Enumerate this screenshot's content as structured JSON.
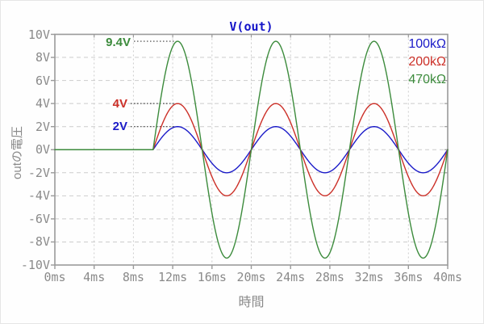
{
  "title": "V(out)",
  "title_color": "#1414c8",
  "axes": {
    "x": {
      "label": "時間",
      "tick_labels": [
        "0ms",
        "4ms",
        "8ms",
        "12ms",
        "16ms",
        "20ms",
        "24ms",
        "28ms",
        "32ms",
        "36ms",
        "40ms"
      ],
      "tick_values": [
        0,
        4,
        8,
        12,
        16,
        20,
        24,
        28,
        32,
        36,
        40
      ]
    },
    "y": {
      "label": "outの電圧",
      "tick_labels": [
        "10V",
        "8V",
        "6V",
        "4V",
        "2V",
        "0V",
        "-2V",
        "-4V",
        "-6V",
        "-8V",
        "-10V"
      ],
      "tick_values": [
        10,
        8,
        6,
        4,
        2,
        0,
        -2,
        -4,
        -6,
        -8,
        -10
      ]
    }
  },
  "legend": [
    {
      "label": "100kΩ",
      "color": "#1a1ac8"
    },
    {
      "label": "200kΩ",
      "color": "#cc3028"
    },
    {
      "label": "470kΩ",
      "color": "#3c8b3c"
    }
  ],
  "annotations": [
    {
      "text": "9.4V",
      "value": 9.4,
      "color": "#3c8b3c"
    },
    {
      "text": "4V",
      "value": 4,
      "color": "#cc3028"
    },
    {
      "text": "2V",
      "value": 2,
      "color": "#1a1ac8"
    }
  ],
  "chart_data": {
    "type": "line",
    "title": "V(out)",
    "xlabel": "時間",
    "ylabel": "outの電圧",
    "x_unit": "ms",
    "y_unit": "V",
    "xlim": [
      0,
      40
    ],
    "ylim": [
      -10,
      10
    ],
    "x_ticks": [
      0,
      4,
      8,
      12,
      16,
      20,
      24,
      28,
      32,
      36,
      40
    ],
    "y_ticks": [
      -10,
      -8,
      -6,
      -4,
      -2,
      0,
      2,
      4,
      6,
      8,
      10
    ],
    "grid": true,
    "legend_position": "top-right",
    "series": [
      {
        "name": "100kΩ",
        "color": "#1a1ac8",
        "waveform": "sine",
        "amplitude_V": 2,
        "flat_until_ms": 10,
        "period_ms": 10
      },
      {
        "name": "200kΩ",
        "color": "#cc3028",
        "waveform": "sine",
        "amplitude_V": 4,
        "flat_until_ms": 10,
        "period_ms": 10
      },
      {
        "name": "470kΩ",
        "color": "#3c8b3c",
        "waveform": "sine",
        "amplitude_V": 9.4,
        "flat_until_ms": 10,
        "period_ms": 10
      }
    ],
    "peak_annotations": [
      {
        "series": "470kΩ",
        "label": "9.4V",
        "peak_ms": 12.5,
        "peak_V": 9.4
      },
      {
        "series": "200kΩ",
        "label": "4V",
        "peak_ms": 12.5,
        "peak_V": 4
      },
      {
        "series": "100kΩ",
        "label": "2V",
        "peak_ms": 12.5,
        "peak_V": 2
      }
    ]
  },
  "colors": {
    "grid": "#cccccc",
    "border": "#9a9a9a",
    "tick_text": "#8a8a8a",
    "leader_line": "#404040",
    "background": "#fefefe"
  }
}
